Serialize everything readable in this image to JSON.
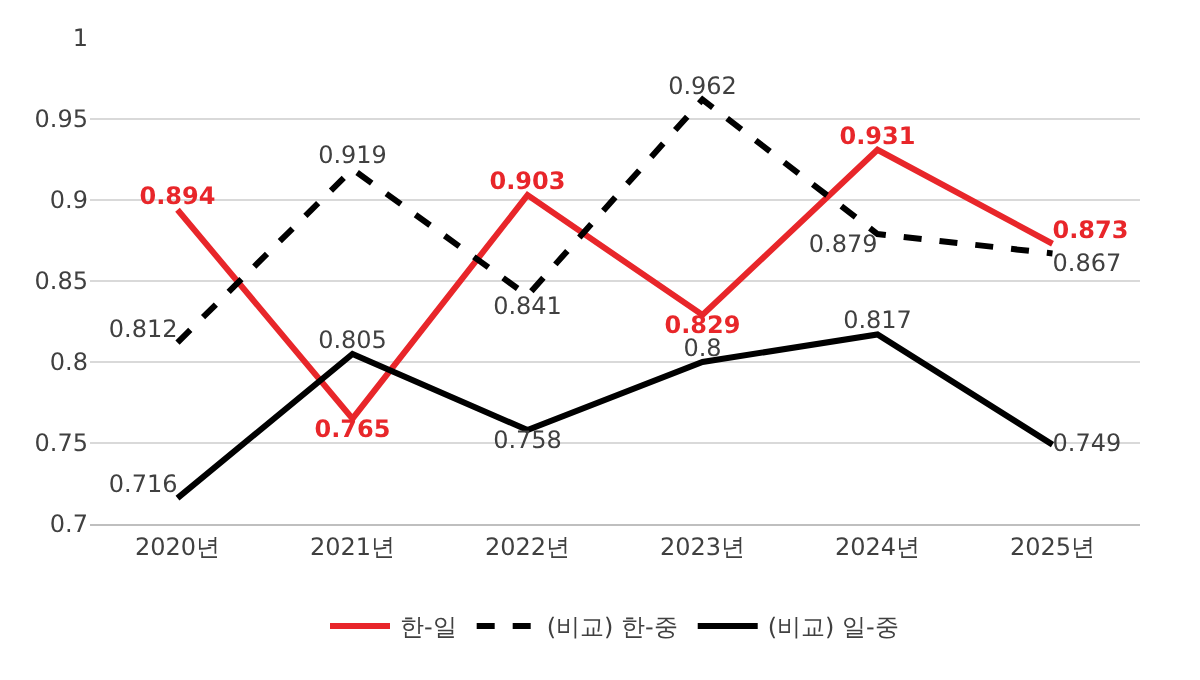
{
  "chart_data": {
    "type": "line",
    "categories": [
      "2020년",
      "2021년",
      "2022년",
      "2023년",
      "2024년",
      "2025년"
    ],
    "series": [
      {
        "name": "한-일",
        "color": "#e8262a",
        "values": [
          0.894,
          0.765,
          0.903,
          0.829,
          0.931,
          0.873
        ]
      },
      {
        "name": "(비교) 한-중",
        "color": "#000000",
        "line_style": "dashed",
        "values": [
          0.812,
          0.919,
          0.841,
          0.962,
          0.879,
          0.867
        ]
      },
      {
        "name": "(비교) 일-중",
        "color": "#000000",
        "values": [
          0.716,
          0.805,
          0.758,
          0.8,
          0.817,
          0.749
        ]
      }
    ],
    "ylim": [
      0.7,
      1
    ],
    "yticks": [
      0.7,
      0.75,
      0.8,
      0.85,
      0.9,
      0.95,
      1
    ],
    "grid": "y",
    "legend": "bottom",
    "data_labels": true,
    "marker": "none",
    "line_style": "solid"
  }
}
